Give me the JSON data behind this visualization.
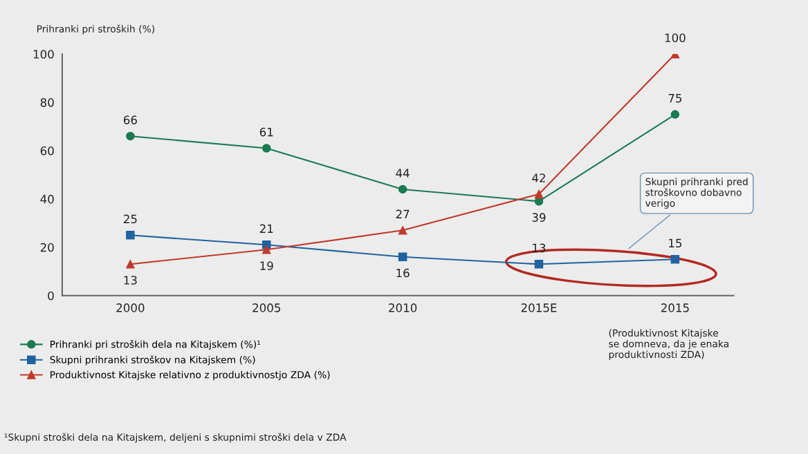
{
  "chart_data": {
    "type": "line",
    "ylabel": "Prihranki pri stroških (%)",
    "categories": [
      "2000",
      "2005",
      "2010",
      "2015E",
      "2015"
    ],
    "series": [
      {
        "name": "Prihranki pri stroških dela na Kitajskem (%)¹",
        "color": "#1a7a52",
        "marker": "circle",
        "values": [
          66,
          61,
          44,
          39,
          75
        ]
      },
      {
        "name": "Skupni prihranki stroškov na Kitajskem (%)",
        "color": "#2162a0",
        "marker": "square",
        "values": [
          25,
          21,
          16,
          13,
          15
        ]
      },
      {
        "name": "Produktivnost Kitajske relativno z produktivnostjo ZDA (%)",
        "color": "#c0392b",
        "marker": "triangle",
        "values": [
          13,
          19,
          27,
          42,
          100
        ]
      }
    ],
    "ylim": [
      0,
      100
    ],
    "yticks": [
      0,
      20,
      40,
      60,
      80,
      100
    ],
    "grid": false,
    "legend": "bottom left",
    "data_labels": true,
    "annotations": [
      "Skupni prihranki pred\nstroškovno dobavno\nverigo",
      "(Produktivnost Kitajske\nse domneva, da je enaka\nproduktivnosti ZDA)",
      "¹Skupni stroški dela na Kitajskem, deljeni s skupnimi stroški dela v ZDA"
    ]
  }
}
